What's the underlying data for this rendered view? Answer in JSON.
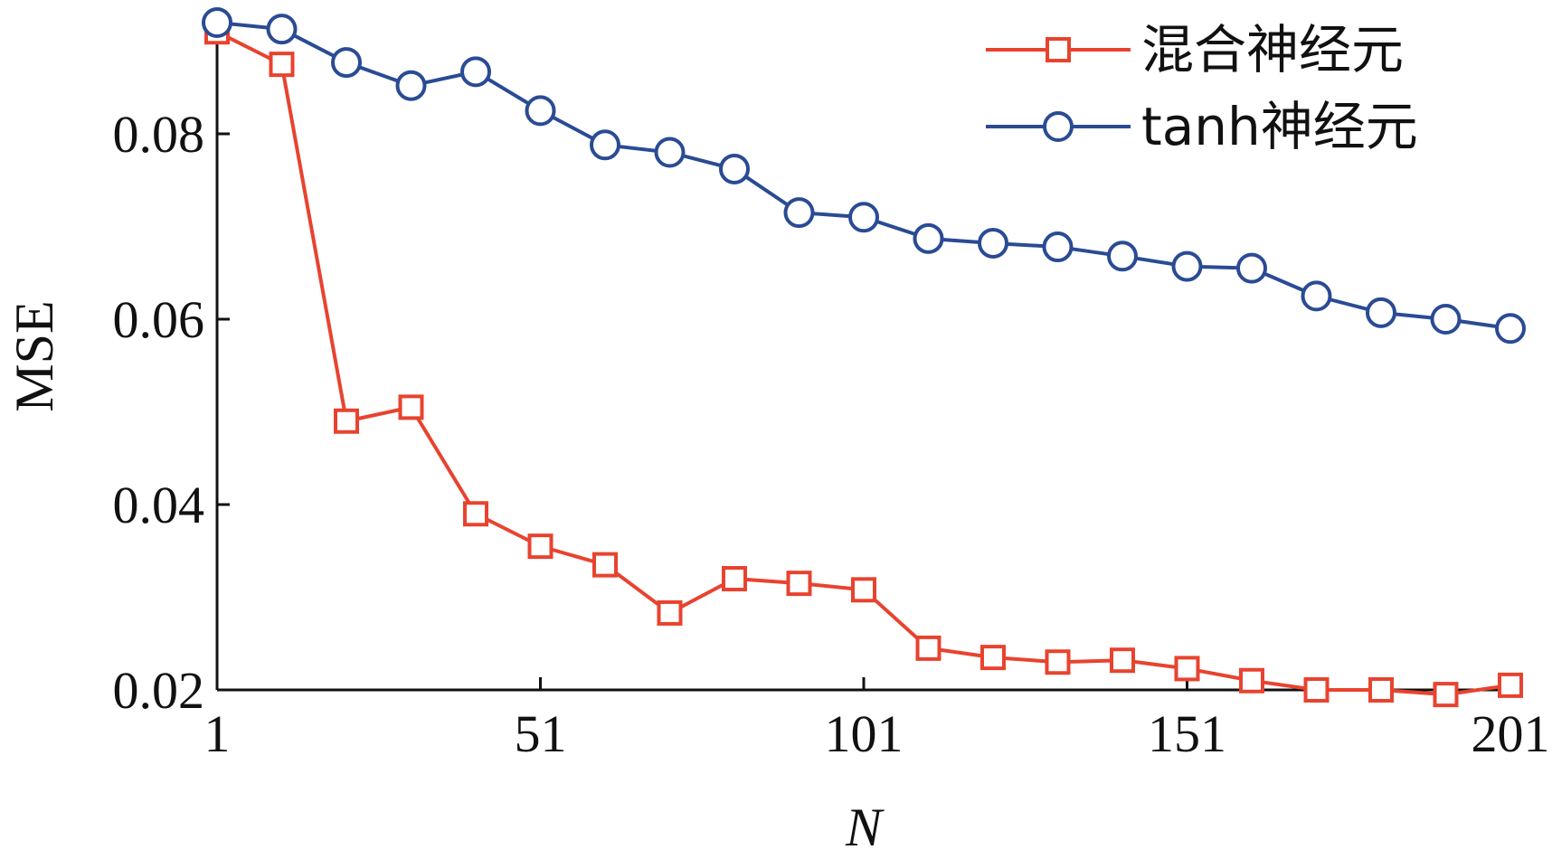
{
  "chart_data": {
    "type": "line",
    "title": "",
    "xlabel": "N",
    "ylabel": "MSE",
    "xlim": [
      1,
      201
    ],
    "ylim": [
      0.02,
      0.092
    ],
    "xticks": [
      1,
      51,
      101,
      151,
      201
    ],
    "xtick_labels": [
      "1",
      "51",
      "101",
      "151",
      "201"
    ],
    "yticks": [
      0.02,
      0.04,
      0.06,
      0.08
    ],
    "ytick_labels": [
      "0.02",
      "0.04",
      "0.06",
      "0.08"
    ],
    "grid": false,
    "legend_position": "top-right",
    "x": [
      1,
      11,
      21,
      31,
      41,
      51,
      61,
      71,
      81,
      91,
      101,
      111,
      121,
      131,
      141,
      151,
      161,
      171,
      181,
      191,
      201
    ],
    "series": [
      {
        "name": "混合神经元",
        "color": "#e8432f",
        "marker": "square",
        "values": [
          0.091,
          0.0875,
          0.049,
          0.0505,
          0.039,
          0.0355,
          0.0335,
          0.0283,
          0.032,
          0.0315,
          0.0308,
          0.0245,
          0.0235,
          0.023,
          0.0232,
          0.0223,
          0.021,
          0.02,
          0.02,
          0.0195,
          0.0205
        ]
      },
      {
        "name": "tanh神经元",
        "color": "#2a4b94",
        "marker": "circle",
        "values": [
          0.092,
          0.0913,
          0.0877,
          0.0852,
          0.0867,
          0.0825,
          0.0788,
          0.078,
          0.0762,
          0.0715,
          0.071,
          0.0687,
          0.0682,
          0.0678,
          0.0668,
          0.0657,
          0.0655,
          0.0625,
          0.0607,
          0.06,
          0.059
        ]
      }
    ]
  }
}
